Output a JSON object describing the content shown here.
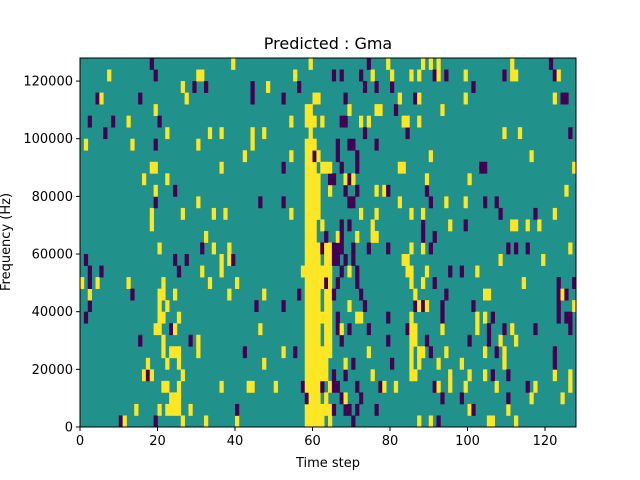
{
  "chart_data": {
    "type": "heatmap",
    "title": "Predicted : Gma",
    "xlabel": "Time step",
    "ylabel": "Frequency (Hz)",
    "xlim": [
      0,
      128
    ],
    "ylim": [
      0,
      128000
    ],
    "x_ticks": [
      0,
      20,
      40,
      60,
      80,
      100,
      120
    ],
    "y_ticks": [
      0,
      20000,
      40000,
      60000,
      80000,
      100000,
      120000
    ],
    "grid": false,
    "colormap": "viridis",
    "value_range": [
      -1,
      1
    ],
    "colors": {
      "background": "#21918c",
      "low": "#440154",
      "high": "#fde725"
    },
    "n_time_steps": 128,
    "n_frequency_bins": 32,
    "frequency_bin_hz": 4000,
    "seed": 20240607
  }
}
